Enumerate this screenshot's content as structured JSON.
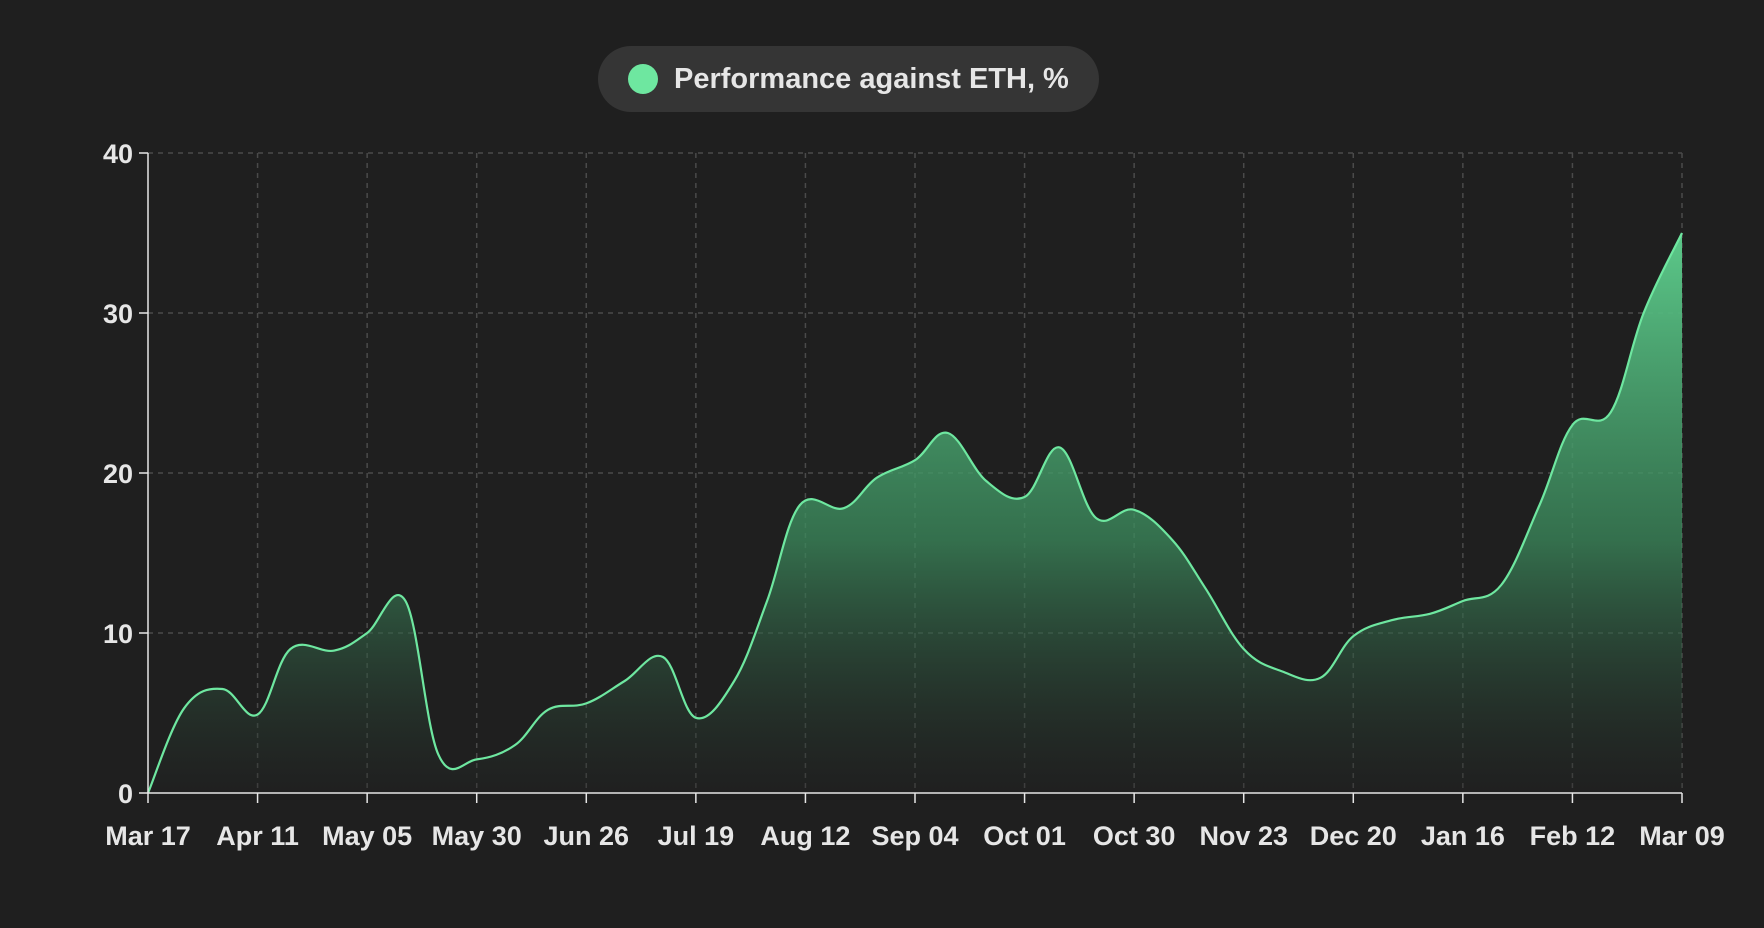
{
  "chart_data": {
    "type": "area",
    "legend": {
      "label": "Performance against ETH, %",
      "color": "#6ee7a0",
      "placement": "top-center"
    },
    "x_tick_labels": [
      "Mar 17",
      "Apr 11",
      "May 05",
      "May 30",
      "Jun 26",
      "Jul 19",
      "Aug 12",
      "Sep 04",
      "Oct 01",
      "Oct 30",
      "Nov 23",
      "Dec 20",
      "Jan 16",
      "Feb 12",
      "Mar 09"
    ],
    "y_ticks": [
      0,
      10,
      20,
      30,
      40
    ],
    "ylim": [
      0,
      40
    ],
    "grid": true,
    "series": [
      {
        "name": "Performance against ETH, %",
        "color": "#6ee7a0",
        "points": [
          [
            0.0,
            0.0
          ],
          [
            0.33,
            5.3
          ],
          [
            0.68,
            6.5
          ],
          [
            1.0,
            4.9
          ],
          [
            1.3,
            9.0
          ],
          [
            1.7,
            8.9
          ],
          [
            2.0,
            10.0
          ],
          [
            2.35,
            12.0
          ],
          [
            2.65,
            2.4
          ],
          [
            3.0,
            2.1
          ],
          [
            3.35,
            3.0
          ],
          [
            3.65,
            5.2
          ],
          [
            4.0,
            5.6
          ],
          [
            4.35,
            7.0
          ],
          [
            4.7,
            8.5
          ],
          [
            5.0,
            4.7
          ],
          [
            5.35,
            7.0
          ],
          [
            5.65,
            12.0
          ],
          [
            5.95,
            18.0
          ],
          [
            6.35,
            17.8
          ],
          [
            6.65,
            19.7
          ],
          [
            7.0,
            20.8
          ],
          [
            7.3,
            22.5
          ],
          [
            7.65,
            19.5
          ],
          [
            8.0,
            18.5
          ],
          [
            8.32,
            21.6
          ],
          [
            8.65,
            17.2
          ],
          [
            9.0,
            17.7
          ],
          [
            9.35,
            15.8
          ],
          [
            9.65,
            12.8
          ],
          [
            10.0,
            9.0
          ],
          [
            10.35,
            7.6
          ],
          [
            10.7,
            7.2
          ],
          [
            11.0,
            9.8
          ],
          [
            11.35,
            10.8
          ],
          [
            11.7,
            11.2
          ],
          [
            12.0,
            12.0
          ],
          [
            12.35,
            13.0
          ],
          [
            12.7,
            18.0
          ],
          [
            13.0,
            23.0
          ],
          [
            13.35,
            23.8
          ],
          [
            13.65,
            30.0
          ],
          [
            14.0,
            35.0
          ]
        ]
      }
    ]
  }
}
